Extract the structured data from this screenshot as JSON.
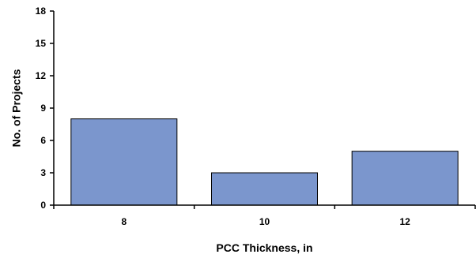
{
  "chart_data": {
    "type": "bar",
    "title": "",
    "xlabel": "PCC Thickness, in",
    "ylabel": "No. of Projects",
    "categories": [
      "8",
      "10",
      "12"
    ],
    "values": [
      8,
      3,
      5
    ],
    "ylim": [
      0,
      18
    ],
    "yticks": [
      "0",
      "3",
      "6",
      "9",
      "12",
      "15",
      "18"
    ],
    "grid": false,
    "legend": "none",
    "colors": {
      "bar_fill": "#7b96cd",
      "bar_stroke": "#000000",
      "axis": "#000000"
    }
  }
}
